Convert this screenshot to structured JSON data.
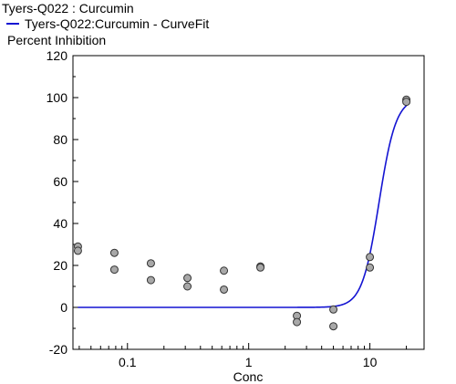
{
  "chart_data": {
    "type": "scatter",
    "title": "Tyers-Q022  : Curcumin",
    "legend": {
      "entries": [
        "Tyers-Q022:Curcumin - CurveFit"
      ],
      "placement": "top-left"
    },
    "ylabel": "Percent Inhibition",
    "xlabel": "Conc",
    "x_scale": "log",
    "xlim": [
      0.0355,
      28
    ],
    "ylim": [
      -20,
      120
    ],
    "x_ticks": [
      0.1,
      1,
      10
    ],
    "x_tick_labels": [
      "0.1",
      "1",
      "10"
    ],
    "y_ticks": [
      -20,
      0,
      20,
      40,
      60,
      80,
      100,
      120
    ],
    "y_tick_labels": [
      "-20",
      "0",
      "20",
      "40",
      "60",
      "80",
      "100",
      "120"
    ],
    "grid": false,
    "colors": {
      "curve": "#1414d2",
      "points": "#a8a8a8"
    },
    "points": [
      {
        "x": 0.039,
        "y": 29
      },
      {
        "x": 0.039,
        "y": 27
      },
      {
        "x": 0.078,
        "y": 26
      },
      {
        "x": 0.078,
        "y": 18
      },
      {
        "x": 0.156,
        "y": 21
      },
      {
        "x": 0.156,
        "y": 13
      },
      {
        "x": 0.3125,
        "y": 14
      },
      {
        "x": 0.3125,
        "y": 10
      },
      {
        "x": 0.625,
        "y": 17.5
      },
      {
        "x": 0.625,
        "y": 8.5
      },
      {
        "x": 1.25,
        "y": 19.5
      },
      {
        "x": 1.25,
        "y": 19
      },
      {
        "x": 2.5,
        "y": -4
      },
      {
        "x": 2.5,
        "y": -7
      },
      {
        "x": 5,
        "y": -1
      },
      {
        "x": 5,
        "y": -9
      },
      {
        "x": 10,
        "y": 24
      },
      {
        "x": 10,
        "y": 19
      },
      {
        "x": 20,
        "y": 99
      },
      {
        "x": 20,
        "y": 98
      }
    ],
    "curve": {
      "name": "Tyers-Q022:Curcumin - CurveFit",
      "bottom": 0,
      "top": 100,
      "ec50": 11.9,
      "hill": 6.2,
      "x_range": [
        0.039,
        20
      ]
    }
  }
}
